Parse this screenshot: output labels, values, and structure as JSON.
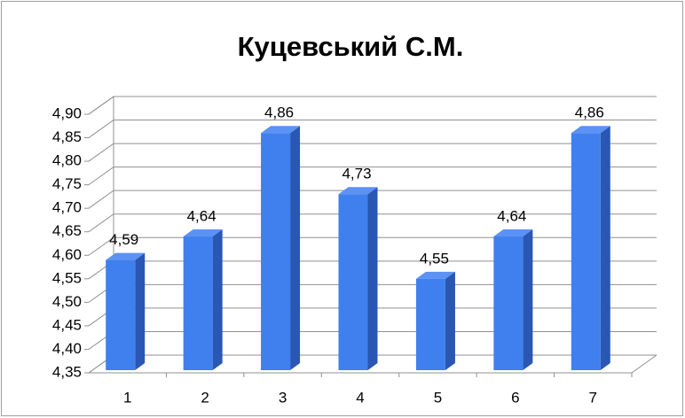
{
  "chart_data": {
    "type": "bar3d",
    "title": "Куцевський С.М.",
    "categories": [
      "1",
      "2",
      "3",
      "4",
      "5",
      "6",
      "7"
    ],
    "values": [
      4.59,
      4.64,
      4.86,
      4.73,
      4.55,
      4.64,
      4.86
    ],
    "value_labels": [
      "4,59",
      "4,64",
      "4,86",
      "4,73",
      "4,55",
      "4,64",
      "4,86"
    ],
    "color": "#3f80ee",
    "ylim": [
      4.35,
      4.9
    ],
    "yticks": [
      {
        "value": 4.35,
        "label": "4,35"
      },
      {
        "value": 4.4,
        "label": "4,40"
      },
      {
        "value": 4.45,
        "label": "4,45"
      },
      {
        "value": 4.5,
        "label": "4,50"
      },
      {
        "value": 4.55,
        "label": "4,55"
      },
      {
        "value": 4.6,
        "label": "4,60"
      },
      {
        "value": 4.65,
        "label": "4,65"
      },
      {
        "value": 4.7,
        "label": "4,70"
      },
      {
        "value": 4.75,
        "label": "4,75"
      },
      {
        "value": 4.8,
        "label": "4,80"
      },
      {
        "value": 4.85,
        "label": "4,85"
      },
      {
        "value": 4.9,
        "label": "4,90"
      }
    ],
    "grid": true
  }
}
